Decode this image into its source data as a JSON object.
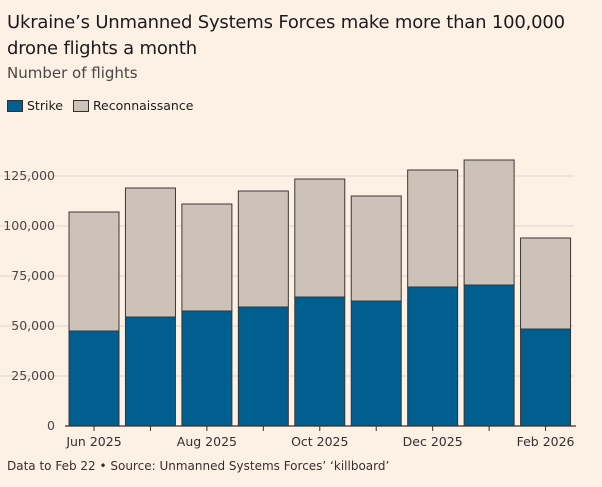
{
  "title": "Ukraine’s Unmanned Systems Forces make more than 100,000 drone flights a month",
  "subtitle": "Number of flights",
  "legend": {
    "strike_label": "Strike",
    "recon_label": "Reconnaissance"
  },
  "colors": {
    "strike": "#005f8f",
    "recon": "#cdc2b8",
    "background": "#fdf1e6",
    "grid": "#e2d4c7"
  },
  "source": "Data to Feb 22 • Source: Unmanned Systems Forces’ ‘killboard’",
  "chart_data": {
    "type": "bar",
    "stacked": true,
    "categories": [
      "Jun 2025",
      "Jul 2025",
      "Aug 2025",
      "Sep 2025",
      "Oct 2025",
      "Nov 2025",
      "Dec 2025",
      "Jan 2026",
      "Feb 2026"
    ],
    "x_tick_labels": [
      "Jun 2025",
      "",
      "Aug 2025",
      "",
      "Oct 2025",
      "",
      "Dec 2025",
      "",
      "Feb 2026"
    ],
    "series": [
      {
        "name": "Strike",
        "values": [
          47500,
          54500,
          57500,
          59500,
          64500,
          62500,
          69500,
          70500,
          48500
        ]
      },
      {
        "name": "Reconnaissance",
        "values": [
          59500,
          64500,
          53500,
          58000,
          59000,
          52500,
          58500,
          62500,
          45500
        ]
      }
    ],
    "totals": [
      107000,
      119000,
      111000,
      117500,
      123500,
      115000,
      128000,
      133000,
      94000
    ],
    "y_ticks": [
      0,
      25000,
      50000,
      75000,
      100000,
      125000
    ],
    "y_tick_labels": [
      "0",
      "25,000",
      "50,000",
      "75,000",
      "100,000",
      "125,000"
    ],
    "ylim": [
      0,
      137500
    ],
    "grid": true,
    "legend_position": "top-left"
  }
}
